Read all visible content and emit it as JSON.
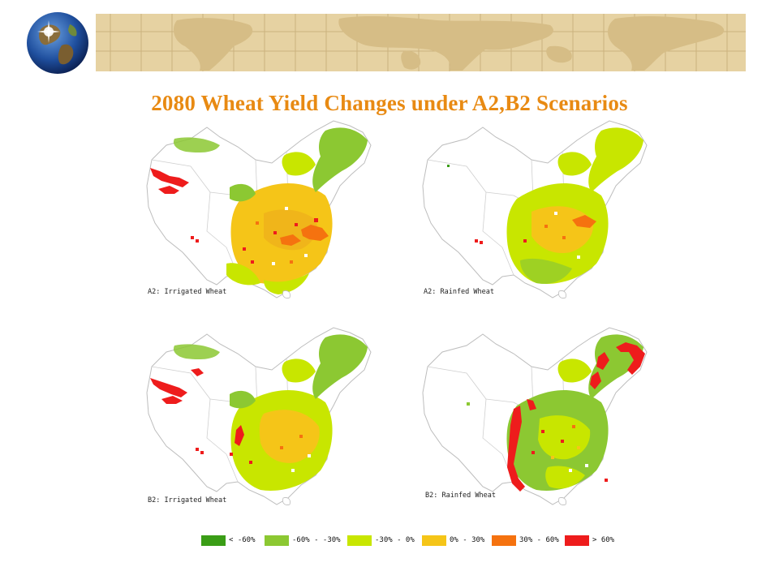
{
  "slide": {
    "title": "2080 Wheat Yield Changes under A2,B2 Scenarios",
    "title_color": "#e88a13",
    "banner_color": "#e6d2a2",
    "icons": [
      "globe-icon",
      "world-map-banner"
    ]
  },
  "maps": [
    {
      "label": "A2: Irrigated Wheat",
      "scenario": "A2",
      "crop": "Irrigated Wheat",
      "dominant": [
        "#f5c518",
        "#c8e600",
        "#8cc832"
      ],
      "hotspots": "red patches in northwest Xinjiang"
    },
    {
      "label": "A2: Rainfed Wheat",
      "scenario": "A2",
      "crop": "Rainfed Wheat",
      "dominant": [
        "#c8e600",
        "#f5c518"
      ],
      "hotspots": "few red patches"
    },
    {
      "label": "B2: Irrigated Wheat",
      "scenario": "B2",
      "crop": "Irrigated Wheat",
      "dominant": [
        "#c8e600",
        "#f5c518"
      ],
      "hotspots": "red patches in northwest Xinjiang"
    },
    {
      "label": "B2: Rainfed Wheat",
      "scenario": "B2",
      "crop": "Rainfed Wheat",
      "dominant": [
        "#8cc832",
        "#c8e600"
      ],
      "hotspots": "red patches along northeast and southwest edges"
    }
  ],
  "legend": [
    {
      "label": "< -60%",
      "color": "#3a9d16"
    },
    {
      "label": "-60% - -30%",
      "color": "#8cc832"
    },
    {
      "label": "-30% - 0%",
      "color": "#c8e600"
    },
    {
      "label": "0% - 30%",
      "color": "#f5c518"
    },
    {
      "label": "30% - 60%",
      "color": "#f5720f"
    },
    {
      "label": "> 60%",
      "color": "#ee1c1c"
    }
  ]
}
